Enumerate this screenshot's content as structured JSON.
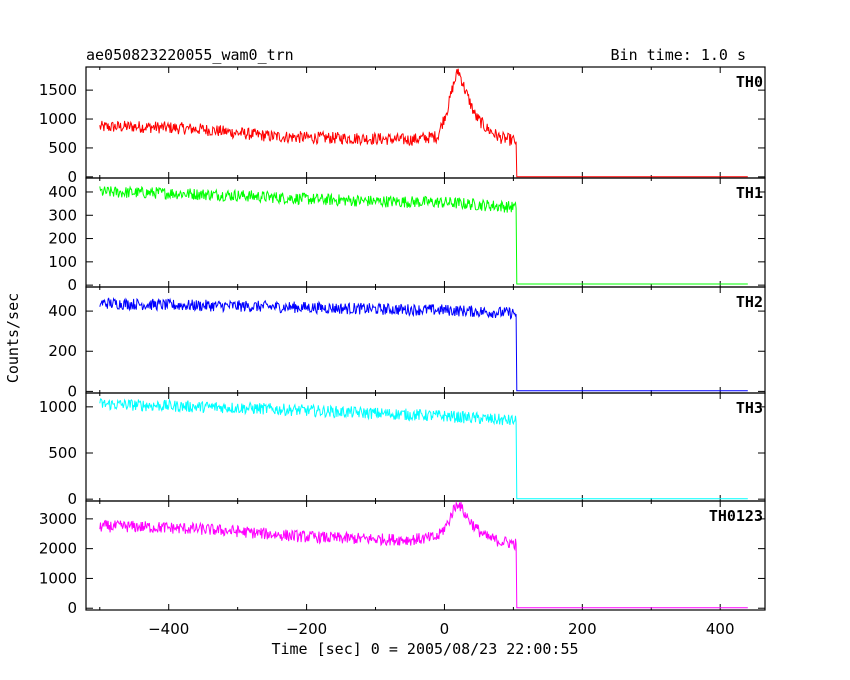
{
  "chart_data": {
    "type": "line",
    "title": "ae050823220055_wam0_trn",
    "bin_time": "Bin time: 1.0 s",
    "xlabel": "Time [sec] 0 = 2005/08/23 22:00:55",
    "ylabel": "Counts/sec",
    "xlim": [
      -520,
      465
    ],
    "xticks": [
      -400,
      -200,
      0,
      200,
      400
    ],
    "panels": [
      {
        "name": "TH0",
        "color": "#ff0000",
        "ylim": [
          -20,
          1900
        ],
        "yticks": [
          0,
          500,
          1000,
          1500
        ],
        "x": [
          -500,
          -450,
          -400,
          -350,
          -300,
          -250,
          -200,
          -150,
          -100,
          -50,
          -10,
          5,
          12,
          20,
          30,
          45,
          60,
          80,
          100,
          104,
          105,
          440
        ],
        "values": [
          860,
          870,
          850,
          820,
          760,
          700,
          680,
          670,
          660,
          640,
          700,
          1200,
          1550,
          1850,
          1500,
          1050,
          850,
          680,
          630,
          610,
          0,
          0
        ]
      },
      {
        "name": "TH1",
        "color": "#00ff00",
        "ylim": [
          -8,
          460
        ],
        "yticks": [
          0,
          100,
          200,
          300,
          400
        ],
        "x": [
          -500,
          -400,
          -300,
          -200,
          -100,
          0,
          100,
          104,
          105,
          440
        ],
        "values": [
          400,
          395,
          385,
          370,
          360,
          355,
          335,
          330,
          5,
          5
        ]
      },
      {
        "name": "TH2",
        "color": "#0000ff",
        "ylim": [
          -8,
          520
        ],
        "yticks": [
          0,
          200,
          400
        ],
        "x": [
          -500,
          -400,
          -300,
          -200,
          -100,
          0,
          100,
          104,
          105,
          440
        ],
        "values": [
          440,
          430,
          425,
          418,
          410,
          405,
          390,
          385,
          3,
          3
        ]
      },
      {
        "name": "TH3",
        "color": "#00ffff",
        "ylim": [
          -20,
          1150
        ],
        "yticks": [
          0,
          500,
          1000
        ],
        "x": [
          -500,
          -400,
          -300,
          -200,
          -100,
          0,
          100,
          104,
          105,
          440
        ],
        "values": [
          1030,
          1010,
          990,
          960,
          930,
          900,
          850,
          840,
          5,
          5
        ]
      },
      {
        "name": "TH0123",
        "color": "#ff00ff",
        "ylim": [
          -60,
          3600
        ],
        "yticks": [
          0,
          1000,
          2000,
          3000
        ],
        "x": [
          -500,
          -450,
          -400,
          -350,
          -300,
          -250,
          -200,
          -150,
          -100,
          -50,
          -10,
          5,
          12,
          20,
          30,
          45,
          60,
          80,
          100,
          104,
          105,
          440
        ],
        "values": [
          2750,
          2740,
          2700,
          2650,
          2580,
          2480,
          2400,
          2350,
          2320,
          2300,
          2380,
          2850,
          3250,
          3560,
          3150,
          2700,
          2400,
          2250,
          2180,
          2160,
          15,
          15
        ]
      }
    ]
  }
}
